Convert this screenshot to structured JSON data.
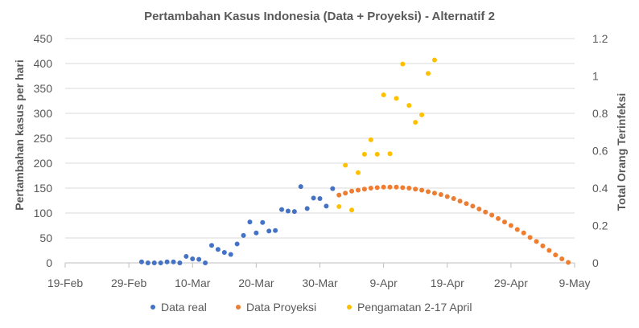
{
  "chart_data": {
    "type": "scatter",
    "title": "Pertambahan Kasus Indonesia (Data + Proyeksi) - Alternatif 2",
    "ylabel": "Pertambahan kasus per hari",
    "y2label": "Total Orang Terinfeksi",
    "xlim": [
      "2020-02-19",
      "2020-05-09"
    ],
    "ylim": [
      0,
      450
    ],
    "y2lim": [
      0,
      1.2
    ],
    "x_ticks": [
      "19-Feb",
      "29-Feb",
      "10-Mar",
      "20-Mar",
      "30-Mar",
      "9-Apr",
      "19-Apr",
      "29-Apr",
      "9-May"
    ],
    "y_ticks": [
      "0",
      "50",
      "100",
      "150",
      "200",
      "250",
      "300",
      "350",
      "400",
      "450"
    ],
    "y2_ticks": [
      "0",
      "0.2",
      "0.4",
      "0.6",
      "0.8",
      "1",
      "1.2"
    ],
    "grid": "horizontal",
    "legend_position": "bottom",
    "series": [
      {
        "name": "Data real",
        "color": "#4472C4",
        "axis": "left",
        "points": [
          [
            "2020-03-02",
            2
          ],
          [
            "2020-03-03",
            0
          ],
          [
            "2020-03-04",
            0
          ],
          [
            "2020-03-05",
            0
          ],
          [
            "2020-03-06",
            2
          ],
          [
            "2020-03-07",
            2
          ],
          [
            "2020-03-08",
            0
          ],
          [
            "2020-03-09",
            13
          ],
          [
            "2020-03-10",
            8
          ],
          [
            "2020-03-11",
            7
          ],
          [
            "2020-03-12",
            0
          ],
          [
            "2020-03-13",
            35
          ],
          [
            "2020-03-14",
            27
          ],
          [
            "2020-03-15",
            21
          ],
          [
            "2020-03-16",
            17
          ],
          [
            "2020-03-17",
            38
          ],
          [
            "2020-03-18",
            55
          ],
          [
            "2020-03-19",
            82
          ],
          [
            "2020-03-20",
            60
          ],
          [
            "2020-03-21",
            81
          ],
          [
            "2020-03-22",
            64
          ],
          [
            "2020-03-23",
            65
          ],
          [
            "2020-03-24",
            107
          ],
          [
            "2020-03-25",
            104
          ],
          [
            "2020-03-26",
            103
          ],
          [
            "2020-03-27",
            153
          ],
          [
            "2020-03-28",
            109
          ],
          [
            "2020-03-29",
            130
          ],
          [
            "2020-03-30",
            129
          ],
          [
            "2020-03-31",
            114
          ],
          [
            "2020-04-01",
            149
          ]
        ]
      },
      {
        "name": "Data Proyeksi",
        "color": "#ED7D31",
        "axis": "left",
        "points": [
          [
            "2020-04-02",
            136
          ],
          [
            "2020-04-03",
            140
          ],
          [
            "2020-04-04",
            144
          ],
          [
            "2020-04-05",
            146
          ],
          [
            "2020-04-06",
            148
          ],
          [
            "2020-04-07",
            150
          ],
          [
            "2020-04-08",
            151
          ],
          [
            "2020-04-09",
            152
          ],
          [
            "2020-04-10",
            152
          ],
          [
            "2020-04-11",
            152
          ],
          [
            "2020-04-12",
            151
          ],
          [
            "2020-04-13",
            150
          ],
          [
            "2020-04-14",
            148
          ],
          [
            "2020-04-15",
            146
          ],
          [
            "2020-04-16",
            143
          ],
          [
            "2020-04-17",
            140
          ],
          [
            "2020-04-18",
            137
          ],
          [
            "2020-04-19",
            133
          ],
          [
            "2020-04-20",
            129
          ],
          [
            "2020-04-21",
            124
          ],
          [
            "2020-04-22",
            119
          ],
          [
            "2020-04-23",
            114
          ],
          [
            "2020-04-24",
            108
          ],
          [
            "2020-04-25",
            102
          ],
          [
            "2020-04-26",
            96
          ],
          [
            "2020-04-27",
            89
          ],
          [
            "2020-04-28",
            82
          ],
          [
            "2020-04-29",
            75
          ],
          [
            "2020-04-30",
            67
          ],
          [
            "2020-05-01",
            60
          ],
          [
            "2020-05-02",
            51
          ],
          [
            "2020-05-03",
            43
          ],
          [
            "2020-05-04",
            34
          ],
          [
            "2020-05-05",
            25
          ],
          [
            "2020-05-06",
            16
          ],
          [
            "2020-05-07",
            8
          ],
          [
            "2020-05-08",
            1
          ]
        ]
      },
      {
        "name": "Pengamatan 2-17 April",
        "color": "#FFC000",
        "axis": "left",
        "points": [
          [
            "2020-04-02",
            113
          ],
          [
            "2020-04-03",
            196
          ],
          [
            "2020-04-04",
            106
          ],
          [
            "2020-04-05",
            181
          ],
          [
            "2020-04-06",
            218
          ],
          [
            "2020-04-07",
            247
          ],
          [
            "2020-04-08",
            218
          ],
          [
            "2020-04-09",
            337
          ],
          [
            "2020-04-10",
            219
          ],
          [
            "2020-04-11",
            330
          ],
          [
            "2020-04-12",
            399
          ],
          [
            "2020-04-13",
            316
          ],
          [
            "2020-04-14",
            282
          ],
          [
            "2020-04-15",
            297
          ],
          [
            "2020-04-16",
            380
          ],
          [
            "2020-04-17",
            407
          ]
        ]
      }
    ]
  }
}
